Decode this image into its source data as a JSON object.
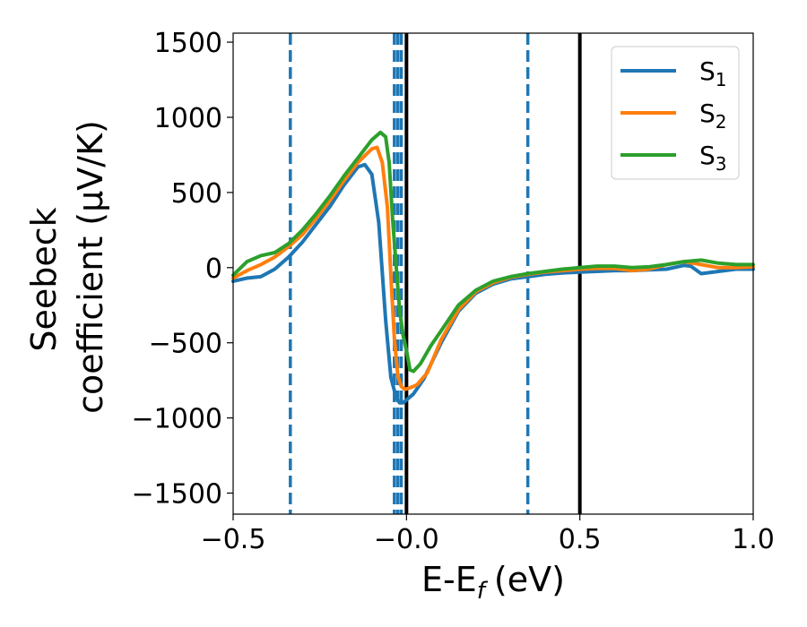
{
  "chart_data": {
    "type": "line",
    "xlabel": "E-E",
    "xlabel_sub": "f",
    "xlabel_unit": "(eV)",
    "ylabel_line1": "Seebeck",
    "ylabel_line2": "coefficient  (μV/K)",
    "xlim": [
      -0.5,
      1.0
    ],
    "ylim": [
      -1640,
      1560
    ],
    "xticks": [
      -0.5,
      0.0,
      0.5,
      1.0
    ],
    "xtick_labels": [
      "−0.5",
      "−0.0",
      "0.5",
      "1.0"
    ],
    "yticks": [
      1500,
      1000,
      500,
      0,
      -500,
      -1000,
      -1500
    ],
    "ytick_labels": [
      "1500",
      "1000",
      "500",
      "0",
      "−500",
      "−1000",
      "−1500"
    ],
    "grid": false,
    "legend_position": "top-right",
    "series": [
      {
        "name": "S",
        "name_sub": "1",
        "color": "#1f77b4",
        "x": [
          -0.5,
          -0.46,
          -0.42,
          -0.38,
          -0.34,
          -0.3,
          -0.26,
          -0.22,
          -0.18,
          -0.14,
          -0.12,
          -0.1,
          -0.08,
          -0.06,
          -0.045,
          -0.03,
          -0.02,
          -0.01,
          0.0,
          0.02,
          0.05,
          0.1,
          0.15,
          0.2,
          0.25,
          0.3,
          0.35,
          0.4,
          0.45,
          0.5,
          0.55,
          0.6,
          0.65,
          0.7,
          0.75,
          0.8,
          0.82,
          0.85,
          0.9,
          0.95,
          1.0
        ],
        "y": [
          -90,
          -70,
          -60,
          -10,
          70,
          170,
          290,
          410,
          550,
          670,
          685,
          620,
          300,
          -350,
          -730,
          -860,
          -900,
          -900,
          -880,
          -840,
          -740,
          -500,
          -290,
          -170,
          -110,
          -75,
          -60,
          -45,
          -35,
          -30,
          -25,
          -20,
          -20,
          -15,
          -10,
          15,
          10,
          -40,
          -25,
          -10,
          -10
        ]
      },
      {
        "name": "S",
        "name_sub": "2",
        "color": "#ff7f0e",
        "x": [
          -0.5,
          -0.46,
          -0.42,
          -0.38,
          -0.34,
          -0.3,
          -0.26,
          -0.22,
          -0.18,
          -0.14,
          -0.1,
          -0.085,
          -0.07,
          -0.055,
          -0.045,
          -0.035,
          -0.025,
          -0.015,
          -0.005,
          0.01,
          0.03,
          0.06,
          0.1,
          0.15,
          0.2,
          0.25,
          0.3,
          0.35,
          0.4,
          0.45,
          0.5,
          0.55,
          0.6,
          0.65,
          0.7,
          0.75,
          0.8,
          0.85,
          0.9,
          0.95,
          1.0
        ],
        "y": [
          -70,
          -20,
          20,
          70,
          140,
          220,
          330,
          450,
          580,
          700,
          790,
          800,
          700,
          400,
          -50,
          -470,
          -720,
          -790,
          -810,
          -800,
          -780,
          -700,
          -480,
          -280,
          -160,
          -100,
          -65,
          -45,
          -30,
          -20,
          -10,
          -5,
          -5,
          -20,
          -10,
          20,
          40,
          20,
          0,
          0,
          5
        ]
      },
      {
        "name": "S",
        "name_sub": "3",
        "color": "#2ca02c",
        "x": [
          -0.5,
          -0.46,
          -0.42,
          -0.38,
          -0.34,
          -0.3,
          -0.26,
          -0.22,
          -0.18,
          -0.14,
          -0.1,
          -0.075,
          -0.06,
          -0.05,
          -0.04,
          -0.03,
          -0.02,
          -0.01,
          0.0,
          0.01,
          0.02,
          0.04,
          0.07,
          0.1,
          0.15,
          0.2,
          0.25,
          0.3,
          0.35,
          0.4,
          0.45,
          0.5,
          0.55,
          0.6,
          0.65,
          0.7,
          0.75,
          0.8,
          0.85,
          0.9,
          0.95,
          1.0
        ],
        "y": [
          -50,
          40,
          80,
          100,
          160,
          250,
          360,
          480,
          610,
          730,
          850,
          900,
          870,
          700,
          320,
          20,
          -280,
          -450,
          -550,
          -680,
          -690,
          -640,
          -520,
          -420,
          -250,
          -150,
          -90,
          -60,
          -40,
          -25,
          -10,
          0,
          10,
          10,
          0,
          5,
          20,
          40,
          50,
          30,
          20,
          20
        ]
      }
    ],
    "vlines": [
      {
        "x": -0.335,
        "style": "dashed",
        "color": "#1f77b4"
      },
      {
        "x": -0.035,
        "style": "dashed",
        "color": "#1f77b4"
      },
      {
        "x": -0.025,
        "style": "dashed",
        "color": "#1f77b4"
      },
      {
        "x": -0.015,
        "style": "dashed",
        "color": "#1f77b4"
      },
      {
        "x": 0.35,
        "style": "dashed",
        "color": "#1f77b4"
      },
      {
        "x": 0.0,
        "style": "solid",
        "color": "#000000"
      },
      {
        "x": 0.5,
        "style": "solid",
        "color": "#000000"
      }
    ]
  }
}
